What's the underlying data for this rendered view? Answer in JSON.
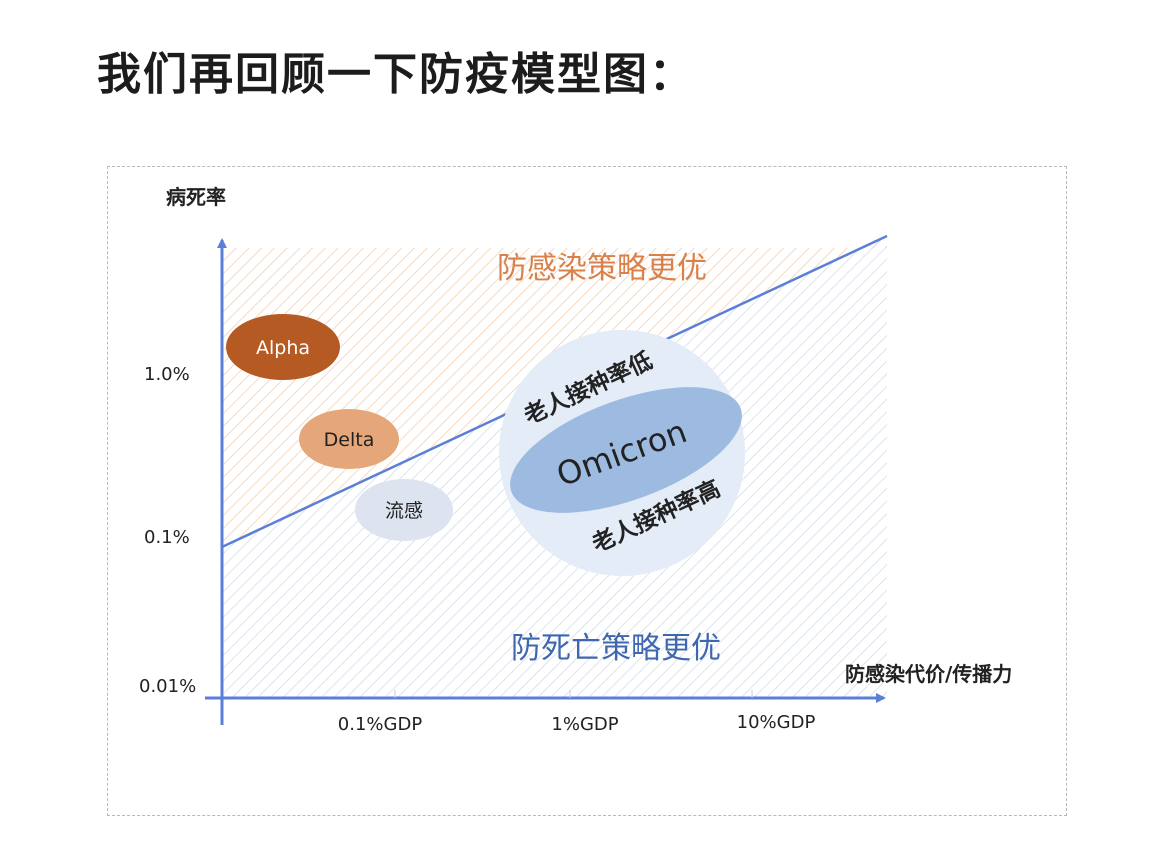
{
  "page": {
    "title": "我们再回顾一下防疫模型图："
  },
  "diagram": {
    "y_axis_label": "病死率",
    "x_axis_label": "防感染代价/传播力",
    "y_ticks": [
      "1.0%",
      "0.1%",
      "0.01%"
    ],
    "x_ticks": [
      "0.1%GDP",
      "1%GDP",
      "10%GDP"
    ],
    "region_upper_label": "防感染策略更优",
    "region_lower_label": "防死亡策略更优",
    "bubbles": {
      "alpha": "Alpha",
      "delta": "Delta",
      "flu": "流感",
      "omicron": "Omicron",
      "elderly_low": "老人接种率低",
      "elderly_high": "老人接种率高"
    },
    "colors": {
      "axis": "#5b7fd6",
      "upper_region_text": "#d9814a",
      "lower_region_text": "#3f67b0",
      "alpha_fill": "#b65a24",
      "delta_fill": "#e5a77a",
      "flu_fill": "#dde3ef",
      "omicron_outer": "#e4ecf7",
      "omicron_inner": "#9dbbe0"
    }
  }
}
